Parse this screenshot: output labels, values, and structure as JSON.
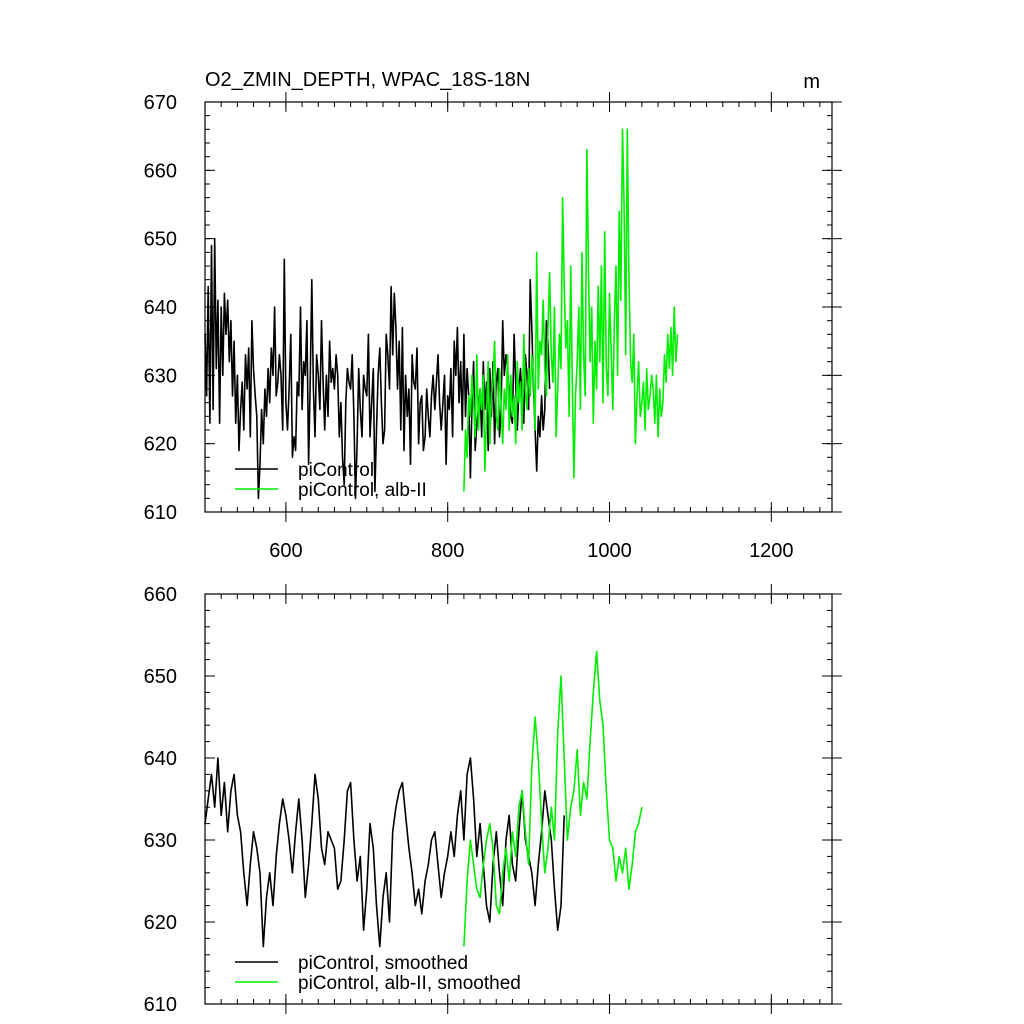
{
  "chart_data": [
    {
      "type": "line",
      "title": "O2_ZMIN_DEPTH, WPAC_18S-18N",
      "units_label": "m",
      "xlim": [
        500,
        1275
      ],
      "ylim": [
        610,
        670
      ],
      "x_ticks": [
        600,
        800,
        1000,
        1200
      ],
      "x_tick_labels": [
        "600",
        "800",
        "1000",
        "1200"
      ],
      "y_ticks": [
        610,
        620,
        630,
        640,
        650,
        660,
        670
      ],
      "y_tick_labels": [
        "610",
        "620",
        "630",
        "640",
        "650",
        "660",
        "670"
      ],
      "legend": {
        "position": "bottom-left"
      },
      "series": [
        {
          "name": "piControl",
          "color": "#000000",
          "x_start": 500,
          "x_step": 2,
          "values": [
            636,
            627,
            643,
            623,
            649,
            625,
            650,
            631,
            641,
            623,
            640,
            630,
            642,
            636,
            641,
            632,
            638,
            627,
            635,
            623,
            630,
            619,
            625,
            629,
            622,
            633,
            628,
            634,
            621,
            638,
            631,
            627,
            624,
            612,
            617,
            625,
            620,
            628,
            624,
            631,
            626,
            634,
            630,
            640,
            627,
            629,
            633,
            630,
            622,
            647,
            626,
            622,
            628,
            636,
            618,
            621,
            619,
            629,
            627,
            640,
            625,
            632,
            630,
            638,
            617,
            629,
            644,
            628,
            621,
            633,
            630,
            625,
            638,
            629,
            622,
            630,
            624,
            635,
            629,
            631,
            628,
            633,
            630,
            621,
            626,
            618,
            614,
            626,
            631,
            629,
            628,
            633,
            624,
            612,
            620,
            631,
            625,
            621,
            630,
            628,
            627,
            636,
            621,
            626,
            631,
            613,
            622,
            630,
            634,
            626,
            620,
            622,
            636,
            633,
            628,
            643,
            633,
            642,
            637,
            628,
            635,
            622,
            637,
            619,
            630,
            624,
            628,
            617,
            633,
            629,
            628,
            634,
            620,
            626,
            627,
            619,
            621,
            628,
            624,
            621,
            627,
            630,
            625,
            629,
            633,
            626,
            622,
            626,
            630,
            617,
            627,
            625,
            631,
            621,
            635,
            630,
            637,
            626,
            632,
            622,
            636,
            624,
            631,
            627,
            615,
            626,
            632,
            619,
            623,
            625,
            628,
            621,
            632,
            625,
            629,
            619,
            631,
            624,
            632,
            620,
            629,
            631,
            621,
            625,
            638,
            630,
            633,
            631,
            627,
            624,
            623,
            636,
            629,
            622,
            628,
            631,
            626,
            623,
            633,
            630,
            625,
            644,
            637,
            628,
            622,
            616,
            624,
            621,
            627,
            622,
            625,
            638,
            635,
            628
          ]
        },
        {
          "name": "piControl, alb-II",
          "color": "#00ee00",
          "x_start": 820,
          "x_step": 2,
          "values": [
            613,
            622,
            618,
            627,
            624,
            630,
            626,
            621,
            633,
            622,
            628,
            625,
            630,
            616,
            624,
            632,
            620,
            627,
            629,
            635,
            624,
            622,
            631,
            626,
            620,
            628,
            625,
            633,
            622,
            630,
            624,
            627,
            620,
            632,
            626,
            629,
            622,
            636,
            628,
            625,
            631,
            627,
            633,
            630,
            622,
            648,
            628,
            635,
            633,
            641,
            631,
            627,
            637,
            645,
            633,
            629,
            640,
            621,
            628,
            636,
            631,
            656,
            643,
            634,
            638,
            624,
            646,
            629,
            615,
            627,
            632,
            640,
            625,
            648,
            633,
            627,
            663,
            645,
            632,
            640,
            623,
            635,
            628,
            643,
            632,
            646,
            626,
            651,
            631,
            627,
            642,
            634,
            625,
            638,
            646,
            630,
            654,
            641,
            666,
            655,
            633,
            666,
            645,
            632,
            629,
            636,
            620,
            627,
            632,
            624,
            626,
            629,
            622,
            631,
            625,
            627,
            630,
            628,
            623,
            630,
            621,
            628,
            624,
            626,
            633,
            629,
            636,
            631,
            637,
            630,
            640,
            632,
            636
          ]
        }
      ]
    },
    {
      "type": "line",
      "title": "",
      "xlim": [
        500,
        1275
      ],
      "ylim": [
        610,
        660
      ],
      "x_ticks": [
        600,
        800,
        1000,
        1200
      ],
      "x_tick_labels": [],
      "y_ticks": [
        610,
        620,
        630,
        640,
        650,
        660
      ],
      "y_tick_labels": [
        "610",
        "620",
        "630",
        "640",
        "650",
        "660"
      ],
      "legend": {
        "position": "bottom-left"
      },
      "series": [
        {
          "name": "piControl, smoothed",
          "color": "#000000",
          "x_start": 500,
          "x_step": 4,
          "values": [
            632,
            635,
            638,
            634,
            640,
            633,
            637,
            631,
            636,
            638,
            633,
            631,
            626,
            622,
            627,
            631,
            629,
            626,
            617,
            623,
            626,
            622,
            628,
            632,
            635,
            633,
            630,
            626,
            631,
            635,
            630,
            623,
            627,
            632,
            638,
            635,
            629,
            627,
            631,
            630,
            629,
            624,
            625,
            630,
            636,
            637,
            630,
            625,
            628,
            619,
            624,
            632,
            629,
            622,
            617,
            623,
            626,
            620,
            631,
            634,
            636,
            637,
            633,
            629,
            626,
            622,
            624,
            621,
            625,
            627,
            630,
            631,
            627,
            623,
            626,
            628,
            631,
            628,
            633,
            636,
            630,
            638,
            640,
            635,
            628,
            632,
            627,
            622,
            620,
            627,
            631,
            626,
            622,
            630,
            633,
            627,
            625,
            631,
            636,
            630,
            628,
            626,
            622,
            627,
            631,
            636,
            633,
            630,
            624,
            619,
            622,
            633
          ]
        },
        {
          "name": "piControl, alb-II, smoothed",
          "color": "#00ee00",
          "x_start": 820,
          "x_step": 4,
          "values": [
            617,
            625,
            630,
            627,
            624,
            623,
            627,
            630,
            632,
            629,
            622,
            621,
            626,
            629,
            625,
            631,
            628,
            634,
            636,
            631,
            627,
            639,
            645,
            640,
            632,
            626,
            629,
            634,
            630,
            643,
            650,
            640,
            630,
            634,
            636,
            641,
            633,
            637,
            635,
            642,
            648,
            653,
            647,
            644,
            636,
            630,
            629,
            625,
            628,
            626,
            629,
            624,
            627,
            631,
            632,
            634
          ]
        }
      ]
    }
  ]
}
